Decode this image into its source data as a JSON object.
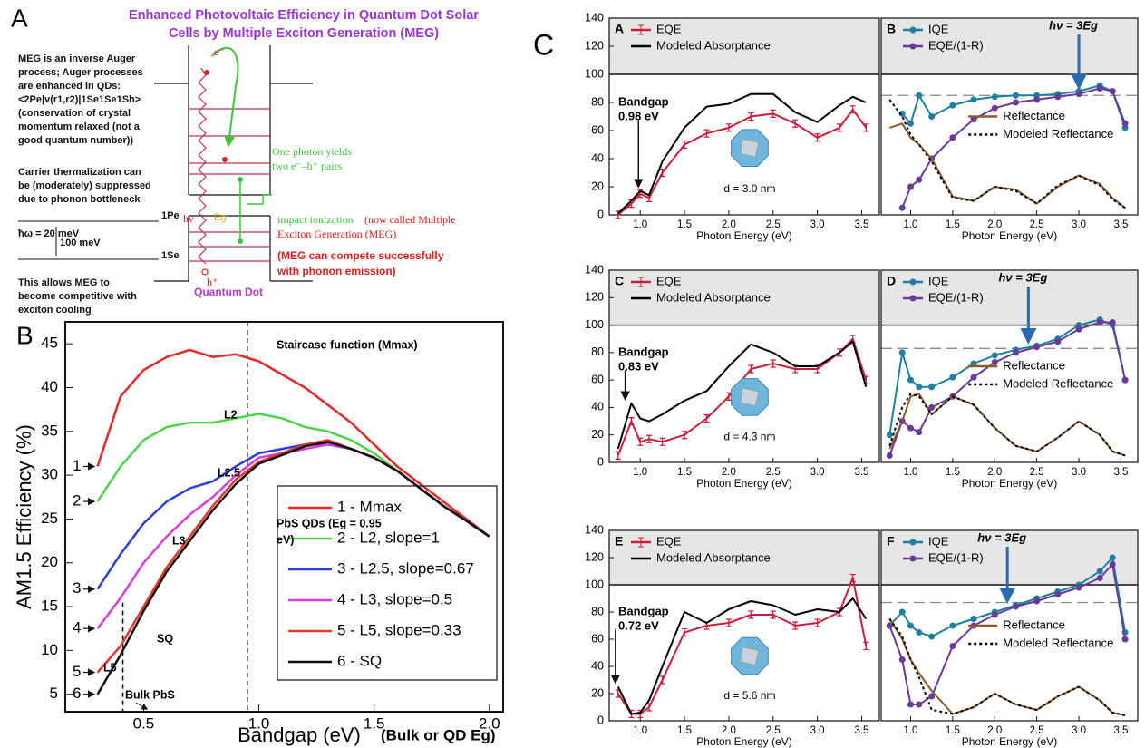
{
  "panel_a": {
    "label": "A",
    "title": [
      "Enhanced Photovoltaic Efficiency in Quantum Dot Solar",
      "Cells by Multiple Exciton Generation (MEG)"
    ],
    "auger_note": [
      "MEG is an inverse Auger",
      "process; Auger processes",
      "are enhanced in QDs:",
      "<2Pe|v(r1,r2)|1Se1Se1Sh>",
      "(conservation of crystal",
      "momentum relaxed (not a",
      "good quantum number))"
    ],
    "bottleneck_note": [
      "Carrier thermalization can",
      "be (moderately) suppressed",
      "due to phonon bottleneck"
    ],
    "levels": {
      "upper": "1Pe",
      "phonon": "ħω = 20 meV",
      "gap": "100 meV",
      "lower": "1Se"
    },
    "conclusion": [
      "This allows MEG to",
      "become competitive with",
      "exciton cooling"
    ],
    "photon_note": [
      "One photon yields",
      "two e⁻–h⁺ pairs"
    ],
    "impact_ionization": "impact ionization",
    "meg_name": [
      "(now called Multiple",
      "Exciton Generation (MEG)"
    ],
    "compete_note": [
      "(MEG can compete successfully",
      "with phonon emission)"
    ],
    "well_labels": {
      "photon": "hν",
      "electron": "e⁻",
      "hole": "h⁺",
      "gap": "Eg"
    },
    "qd_label": "Quantum Dot"
  },
  "panel_c": {
    "label": "C"
  },
  "chart_data": [
    {
      "type": "line",
      "panel": "B",
      "xlabel": "Bandgap (eV)",
      "xlabel_note": "(Bulk or QD Eg)",
      "ylabel": "AM1.5 Efficiency (%)",
      "x": [
        0.3,
        0.4,
        0.5,
        0.6,
        0.7,
        0.8,
        0.9,
        1.0,
        1.1,
        1.2,
        1.3,
        1.4,
        1.5,
        1.6,
        1.7,
        1.8,
        1.9,
        2.0
      ],
      "series": [
        {
          "name": "1 - Mmax",
          "color": "#e8282a",
          "style": "line",
          "values": [
            31,
            39,
            42,
            43.5,
            44.3,
            43.5,
            43.8,
            43,
            41.5,
            40,
            38,
            36,
            33.5,
            31,
            29,
            27,
            25,
            23
          ]
        },
        {
          "name": "2 - L2, slope=1",
          "color": "#4fd24a",
          "style": "line",
          "values": [
            27,
            31,
            34,
            35.5,
            36,
            36,
            36.5,
            37,
            36.5,
            35.5,
            35,
            34,
            32.5,
            30.5,
            28.5,
            26.5,
            24.8,
            23
          ]
        },
        {
          "name": "3 - L2.5, slope=0.67",
          "color": "#2b3fd6",
          "style": "line",
          "values": [
            17,
            21,
            24.5,
            27,
            28.5,
            29.3,
            31,
            32.5,
            33,
            33.5,
            33.5,
            33,
            32,
            30.5,
            28.5,
            26.5,
            24.8,
            23
          ]
        },
        {
          "name": "4 - L3, slope=0.5",
          "color": "#d43fd9",
          "style": "line",
          "values": [
            12.5,
            16,
            20,
            23,
            25.5,
            27.5,
            30,
            32,
            32.5,
            33,
            33.5,
            33,
            32,
            30.5,
            28.5,
            26.5,
            24.8,
            23
          ]
        },
        {
          "name": "5 - L5, slope=0.33",
          "color": "#e23a2a",
          "style": "line",
          "values": [
            7.5,
            10.5,
            15,
            19.5,
            23,
            26.5,
            29.5,
            31.5,
            32.5,
            33.5,
            34,
            33,
            32,
            30.5,
            28.5,
            26.5,
            24.8,
            23
          ]
        },
        {
          "name": "6 - SQ",
          "color": "#111111",
          "style": "line",
          "values": [
            5,
            9.5,
            14.5,
            19,
            22.5,
            26,
            29,
            31.3,
            32.3,
            33.3,
            33.8,
            33,
            32,
            30.5,
            28.5,
            26.5,
            24.8,
            23
          ]
        }
      ],
      "curve_numbers": [
        "1",
        "2",
        "3",
        "4",
        "5",
        "6"
      ],
      "annotations": [
        "Staircase function (Mmax)",
        "L2",
        "L2.5",
        "L3",
        "L5",
        "SQ",
        "PbS QDs (Eg = 0.95",
        "eV)",
        "Bulk PbS"
      ],
      "vlines": [
        0.95,
        0.41
      ],
      "xlim": [
        0.16,
        2.06
      ],
      "ylim": [
        3,
        47.5
      ],
      "xticks": [
        0.5,
        {
          "value": 1,
          "label": "1.0"
        },
        1.5,
        {
          "value": 2,
          "label": "2.0"
        }
      ],
      "yticks": [
        5,
        10,
        15,
        20,
        25,
        30,
        35,
        40,
        45
      ],
      "legend": "center right"
    },
    {
      "type": "line",
      "panel": "A",
      "xlabel": "Photon Energy (eV)",
      "x": [
        0.75,
        0.9,
        1.0,
        1.1,
        1.25,
        1.5,
        1.75,
        2.0,
        2.25,
        2.5,
        2.75,
        3.0,
        3.25,
        3.4,
        3.55
      ],
      "series": [
        {
          "name": "EQE",
          "color": "#c8203c",
          "style": "error",
          "values": [
            0,
            8,
            15,
            12,
            30,
            50,
            58,
            62,
            70,
            72,
            65,
            55,
            62,
            75,
            62
          ]
        },
        {
          "name": "Modeled Absorptance",
          "color": "#000000",
          "style": "line",
          "values": [
            1,
            10,
            17,
            14,
            38,
            62,
            77,
            79,
            86,
            86,
            73,
            66,
            78,
            84,
            80
          ]
        }
      ],
      "annotations": [
        "Bandgap",
        "0.98 eV",
        "d = 3.0 nm"
      ],
      "arrow_x": 0.98,
      "hlines": [
        100
      ],
      "xlim": [
        0.65,
        3.7
      ],
      "ylim": [
        0,
        140
      ],
      "xticks": [
        {
          "value": 1,
          "label": "1.0"
        },
        1.5,
        {
          "value": 2,
          "label": "2.0"
        },
        2.5,
        {
          "value": 3,
          "label": "3.0"
        },
        3.5
      ],
      "yticks": [
        0,
        20,
        40,
        60,
        80,
        100,
        120,
        140
      ]
    },
    {
      "type": "line",
      "panel": "B",
      "xlabel": "Photon Energy (eV)",
      "x": [
        0.75,
        0.9,
        1.0,
        1.1,
        1.25,
        1.5,
        1.75,
        2.0,
        2.25,
        2.5,
        2.75,
        3.0,
        3.25,
        3.4,
        3.55
      ],
      "series": [
        {
          "name": "IQE",
          "color": "#1f7fa0",
          "style": "markers",
          "values": [
            null,
            72,
            65,
            85,
            70,
            78,
            82,
            84,
            85,
            85,
            86,
            88,
            92,
            88,
            62
          ]
        },
        {
          "name": "EQE/(1-R)",
          "color": "#6a3a9a",
          "style": "markers",
          "values": [
            null,
            5,
            20,
            25,
            40,
            55,
            68,
            76,
            80,
            82,
            84,
            86,
            90,
            88,
            65
          ]
        },
        {
          "name": "Reflectance",
          "color": "#8b5a2b",
          "style": "line",
          "values": [
            62,
            65,
            55,
            50,
            40,
            13,
            10,
            20,
            18,
            8,
            20,
            28,
            22,
            12,
            5
          ]
        },
        {
          "name": "Modeled Reflectance",
          "color": "#000000",
          "style": "dotted",
          "values": [
            82,
            70,
            57,
            50,
            38,
            12,
            10,
            20,
            17,
            8,
            21,
            28,
            21,
            11,
            5
          ]
        }
      ],
      "annotations": [
        "hν = 3Eg"
      ],
      "arrow_x": 3.0,
      "hlines": [
        100
      ],
      "dashed_hlines": [
        85
      ],
      "xlim": [
        0.65,
        3.7
      ],
      "ylim": [
        0,
        140
      ],
      "xticks": [
        {
          "value": 1,
          "label": "1.0"
        },
        1.5,
        {
          "value": 2,
          "label": "2.0"
        },
        2.5,
        {
          "value": 3,
          "label": "3.0"
        },
        3.5
      ]
    },
    {
      "type": "line",
      "panel": "C",
      "xlabel": "Photon Energy (eV)",
      "x": [
        0.75,
        0.9,
        1.0,
        1.1,
        1.25,
        1.5,
        1.75,
        2.0,
        2.25,
        2.5,
        2.75,
        3.0,
        3.25,
        3.4,
        3.55
      ],
      "series": [
        {
          "name": "EQE",
          "color": "#c8203c",
          "style": "error",
          "values": [
            5,
            30,
            15,
            17,
            15,
            20,
            32,
            48,
            68,
            72,
            68,
            68,
            80,
            90,
            60
          ]
        },
        {
          "name": "Modeled Absorptance",
          "color": "#000000",
          "style": "line",
          "values": [
            10,
            43,
            32,
            30,
            35,
            45,
            52,
            70,
            86,
            80,
            70,
            70,
            80,
            88,
            55
          ]
        }
      ],
      "annotations": [
        "Bandgap",
        "0.83 eV",
        "d = 4.3 nm"
      ],
      "arrow_x": 0.83,
      "hlines": [
        100
      ],
      "xlim": [
        0.65,
        3.7
      ],
      "ylim": [
        0,
        140
      ],
      "xticks": [
        {
          "value": 1,
          "label": "1.0"
        },
        1.5,
        {
          "value": 2,
          "label": "2.0"
        },
        2.5,
        {
          "value": 3,
          "label": "3.0"
        },
        3.5
      ],
      "yticks": [
        0,
        20,
        40,
        60,
        80,
        100,
        120,
        140
      ]
    },
    {
      "type": "line",
      "panel": "D",
      "xlabel": "Photon Energy (eV)",
      "x": [
        0.75,
        0.9,
        1.0,
        1.1,
        1.25,
        1.5,
        1.75,
        2.0,
        2.25,
        2.5,
        2.75,
        3.0,
        3.25,
        3.4,
        3.55
      ],
      "series": [
        {
          "name": "IQE",
          "color": "#1f7fa0",
          "style": "markers",
          "values": [
            20,
            80,
            60,
            55,
            55,
            62,
            72,
            78,
            82,
            85,
            90,
            100,
            104,
            100,
            60
          ]
        },
        {
          "name": "EQE/(1-R)",
          "color": "#6a3a9a",
          "style": "markers",
          "values": [
            5,
            30,
            25,
            22,
            40,
            48,
            62,
            73,
            80,
            84,
            88,
            97,
            102,
            102,
            60
          ]
        },
        {
          "name": "Reflectance",
          "color": "#8b5a2b",
          "style": "line",
          "values": [
            10,
            30,
            48,
            50,
            35,
            48,
            42,
            25,
            12,
            8,
            18,
            30,
            20,
            8,
            5
          ]
        },
        {
          "name": "Modeled Reflectance",
          "color": "#000000",
          "style": "dotted",
          "values": [
            12,
            40,
            50,
            48,
            35,
            48,
            42,
            25,
            12,
            8,
            18,
            30,
            20,
            8,
            5
          ]
        }
      ],
      "annotations": [
        "hν = 3Eg"
      ],
      "arrow_x": 2.4,
      "hlines": [
        100
      ],
      "dashed_hlines": [
        83
      ],
      "xlim": [
        0.65,
        3.7
      ],
      "ylim": [
        0,
        140
      ],
      "xticks": [
        {
          "value": 1,
          "label": "1.0"
        },
        1.5,
        {
          "value": 2,
          "label": "2.0"
        },
        2.5,
        {
          "value": 3,
          "label": "3.0"
        },
        3.5
      ]
    },
    {
      "type": "line",
      "panel": "E",
      "xlabel": "Photon Energy (eV)",
      "x": [
        0.75,
        0.9,
        1.0,
        1.1,
        1.25,
        1.5,
        1.75,
        2.0,
        2.25,
        2.5,
        2.75,
        3.0,
        3.25,
        3.4,
        3.55
      ],
      "series": [
        {
          "name": "EQE",
          "color": "#c8203c",
          "style": "error",
          "values": [
            20,
            5,
            5,
            10,
            30,
            65,
            70,
            72,
            78,
            78,
            70,
            72,
            80,
            105,
            55
          ]
        },
        {
          "name": "Modeled Absorptance",
          "color": "#000000",
          "style": "line",
          "values": [
            25,
            5,
            6,
            15,
            40,
            80,
            72,
            82,
            88,
            85,
            78,
            82,
            80,
            90,
            75
          ]
        }
      ],
      "annotations": [
        "Bandgap",
        "0.72 eV",
        "d = 5.6 nm"
      ],
      "arrow_x": 0.72,
      "hlines": [
        100
      ],
      "xlim": [
        0.65,
        3.7
      ],
      "ylim": [
        0,
        140
      ],
      "xticks": [
        {
          "value": 1,
          "label": "1.0"
        },
        1.5,
        {
          "value": 2,
          "label": "2.0"
        },
        2.5,
        {
          "value": 3,
          "label": "3.0"
        },
        3.5
      ],
      "yticks": [
        0,
        20,
        40,
        60,
        80,
        100,
        120,
        140
      ]
    },
    {
      "type": "line",
      "panel": "F",
      "xlabel": "Photon Energy (eV)",
      "x": [
        0.75,
        0.9,
        1.0,
        1.1,
        1.25,
        1.5,
        1.75,
        2.0,
        2.25,
        2.5,
        2.75,
        3.0,
        3.25,
        3.4,
        3.55
      ],
      "series": [
        {
          "name": "IQE",
          "color": "#1f7fa0",
          "style": "markers",
          "values": [
            70,
            80,
            70,
            65,
            62,
            70,
            75,
            80,
            85,
            90,
            95,
            100,
            110,
            120,
            65
          ]
        },
        {
          "name": "EQE/(1-R)",
          "color": "#6a3a9a",
          "style": "markers",
          "values": [
            70,
            45,
            12,
            12,
            18,
            55,
            70,
            78,
            84,
            88,
            93,
            98,
            105,
            115,
            60
          ]
        },
        {
          "name": "Reflectance",
          "color": "#8b5a2b",
          "style": "line",
          "values": [
            75,
            60,
            45,
            35,
            22,
            5,
            10,
            20,
            12,
            8,
            18,
            25,
            15,
            6,
            4
          ]
        },
        {
          "name": "Modeled Reflectance",
          "color": "#000000",
          "style": "dotted",
          "values": [
            75,
            62,
            45,
            32,
            8,
            5,
            10,
            20,
            12,
            8,
            18,
            25,
            15,
            6,
            4
          ]
        }
      ],
      "annotations": [
        "hν = 3Eg"
      ],
      "arrow_x": 2.15,
      "hlines": [
        100
      ],
      "dashed_hlines": [
        87
      ],
      "xlim": [
        0.65,
        3.7
      ],
      "ylim": [
        0,
        140
      ],
      "xticks": [
        {
          "value": 1,
          "label": "1.0"
        },
        1.5,
        {
          "value": 2,
          "label": "2.0"
        },
        2.5,
        {
          "value": 3,
          "label": "3.0"
        },
        3.5
      ]
    }
  ]
}
